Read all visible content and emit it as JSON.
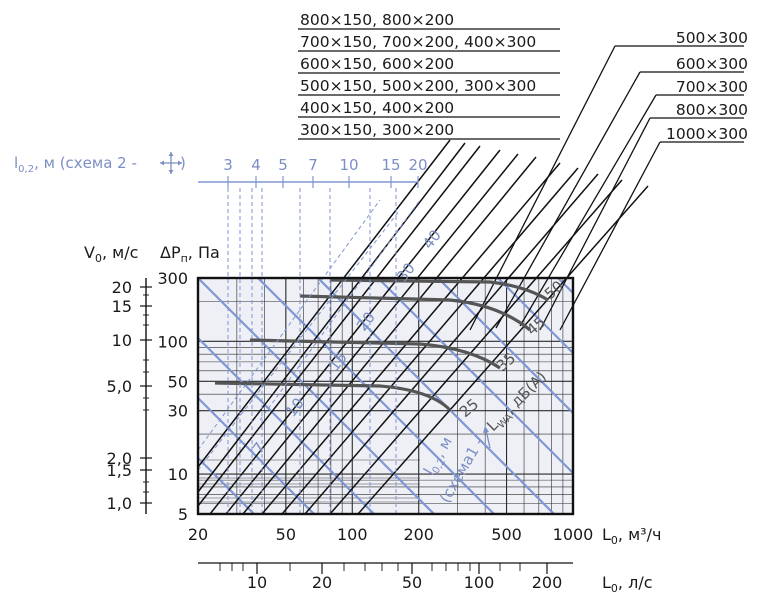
{
  "chart_data": {
    "type": "line",
    "title": "",
    "colors": {
      "black": "#111111",
      "blue": "#7f96d2",
      "grey": "#555555",
      "plot_bg": "#eef0f6"
    },
    "x_axis": {
      "label": "L",
      "label_sub": "0",
      "unit": ", м³/ч",
      "scale": "log",
      "range": [
        20,
        1000
      ],
      "ticks": [
        20,
        50,
        100,
        200,
        500,
        1000
      ]
    },
    "x2_axis": {
      "label": "L",
      "label_sub": "0",
      "unit": ", л/с",
      "scale": "log",
      "ticks": [
        10,
        20,
        50,
        100,
        200
      ]
    },
    "y_axis": {
      "label": "ΔP",
      "label_sub": "п",
      "unit": ", Па",
      "scale": "log",
      "range": [
        5,
        300
      ],
      "ticks": [
        5,
        10,
        30,
        50,
        100,
        300
      ]
    },
    "y2_axis": {
      "label": "V",
      "label_sub": "0",
      "unit": ", м/с",
      "ticks": [
        "1,0",
        "1,5",
        "2,0",
        "5,0",
        "10",
        "15",
        "20"
      ]
    },
    "l_axis": {
      "label": "l",
      "label_sub": "0,2",
      "unit": ", м (схема 2 -",
      "unit_end": ")",
      "ticks": [
        3,
        4,
        5,
        7,
        10,
        15,
        20
      ]
    },
    "sizes_left": [
      "800×150, 800×200",
      "700×150, 700×200, 400×300",
      "600×150, 600×200",
      "500×150, 500×200, 300×300",
      "400×150, 400×200",
      "300×150, 300×200"
    ],
    "sizes_right": [
      "500×300",
      "600×300",
      "700×300",
      "800×300",
      "1000×300"
    ],
    "noise_label": "L",
    "noise_label_sub": "WA",
    "noise_label_unit": ", дБ(А)",
    "noise_levels": [
      25,
      35,
      45,
      50
    ],
    "throw_label_l": "l",
    "throw_label_sub": "0,2",
    "throw_label_unit": ", м",
    "throw_label_scheme": "(схема1 -",
    "throw_values": [
      7,
      10,
      15,
      20,
      30,
      40
    ]
  }
}
